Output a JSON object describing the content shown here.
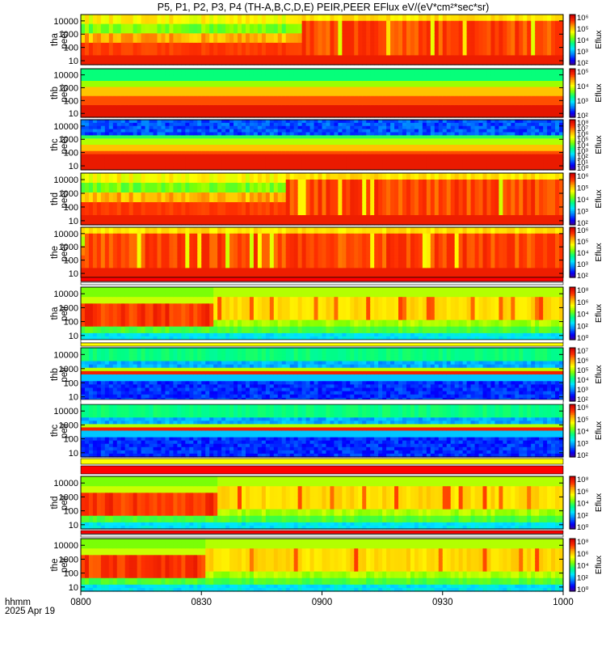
{
  "title": "P5, P1, P2, P3, P4 (TH-A,B,C,D,E) PEIR,PEER EFlux eV/(eV*cm²*sec*sr)",
  "time_axis": {
    "label": "hhmm",
    "date": "2025 Apr 19",
    "ticks": [
      "0800",
      "0830",
      "0900",
      "0930",
      "1000"
    ]
  },
  "colors": {
    "colormap": [
      "#4b0082",
      "#0000ff",
      "#0080ff",
      "#00e5ff",
      "#00ff80",
      "#80ff00",
      "#ffff00",
      "#ffa500",
      "#ff3000",
      "#d00000"
    ]
  },
  "chart_data": {
    "type": "heatmap",
    "x_unit": "time (hhmm)",
    "x_range": [
      "0800",
      "1000"
    ],
    "y_scale": "log",
    "y_ticks": [
      "10",
      "100",
      "1000",
      "10000"
    ],
    "y_range": [
      5,
      30000
    ],
    "colorbar_label": "Eflux",
    "grid": false,
    "panels": [
      {
        "probe": "tha",
        "species": "peer",
        "label": [
          "tha",
          "peer"
        ],
        "colorbar_ticks": [
          "10²",
          "10³",
          "10⁴",
          "10⁵",
          "10⁶"
        ],
        "colorbar_range": [
          2,
          6
        ],
        "profile": "active_electron",
        "onset": 0.45
      },
      {
        "probe": "thb",
        "species": "peer",
        "label": [
          "thb",
          "peer"
        ],
        "colorbar_ticks": [
          "10²",
          "10³",
          "10⁴",
          "10⁵"
        ],
        "colorbar_range": [
          2,
          5
        ],
        "profile": "quiet_electron",
        "onset": 1.1
      },
      {
        "probe": "thc",
        "species": "peer",
        "label": [
          "thc",
          "peer"
        ],
        "colorbar_ticks": [
          "10⁰",
          "10¹",
          "10²",
          "10³",
          "10⁴",
          "10⁵",
          "10⁶",
          "10⁷",
          "10⁸"
        ],
        "colorbar_range": [
          0,
          8
        ],
        "profile": "noisy_electron",
        "onset": 1.1
      },
      {
        "probe": "thd",
        "species": "peer",
        "label": [
          "thd",
          "peer"
        ],
        "colorbar_ticks": [
          "10²",
          "10³",
          "10⁴",
          "10⁵",
          "10⁶"
        ],
        "colorbar_range": [
          2,
          6
        ],
        "profile": "active_electron",
        "onset": 0.42
      },
      {
        "probe": "the",
        "species": "peer",
        "label": [
          "the",
          "peer"
        ],
        "colorbar_ticks": [
          "10²",
          "10³",
          "10⁴",
          "10⁵",
          "10⁶"
        ],
        "colorbar_range": [
          2,
          6
        ],
        "profile": "active_electron",
        "onset": 0.0
      },
      {
        "probe": "tha",
        "species": "peir",
        "label": [
          "tha",
          "peir"
        ],
        "colorbar_ticks": [
          "10⁰",
          "10²",
          "10⁴",
          "10⁶",
          "10⁸"
        ],
        "colorbar_range": [
          0,
          8
        ],
        "profile": "ion",
        "onset": 0.27
      },
      {
        "probe": "thb",
        "species": "peir",
        "label": [
          "thb",
          "peir"
        ],
        "colorbar_ticks": [
          "10²",
          "10³",
          "10⁴",
          "10⁵",
          "10⁶",
          "10⁷"
        ],
        "colorbar_range": [
          2,
          7
        ],
        "profile": "solar_wind_ion",
        "onset": 1.1
      },
      {
        "probe": "thc",
        "species": "peir",
        "label": [
          "thc",
          "peir"
        ],
        "colorbar_ticks": [
          "10²",
          "10³",
          "10⁴",
          "10⁵",
          "10⁶"
        ],
        "colorbar_range": [
          2,
          6
        ],
        "profile": "solar_wind_ion",
        "onset": 1.1
      },
      {
        "probe": "thd",
        "species": "peir",
        "label": [
          "thd",
          "peir"
        ],
        "colorbar_ticks": [
          "10⁰",
          "10²",
          "10⁴",
          "10⁶",
          "10⁸"
        ],
        "colorbar_range": [
          0,
          8
        ],
        "profile": "ion",
        "onset": 0.28
      },
      {
        "probe": "the",
        "species": "peir",
        "label": [
          "the",
          "peir"
        ],
        "colorbar_ticks": [
          "10⁰",
          "10²",
          "10⁴",
          "10⁶",
          "10⁸"
        ],
        "colorbar_range": [
          0,
          8
        ],
        "profile": "ion",
        "onset": 0.25
      }
    ]
  }
}
